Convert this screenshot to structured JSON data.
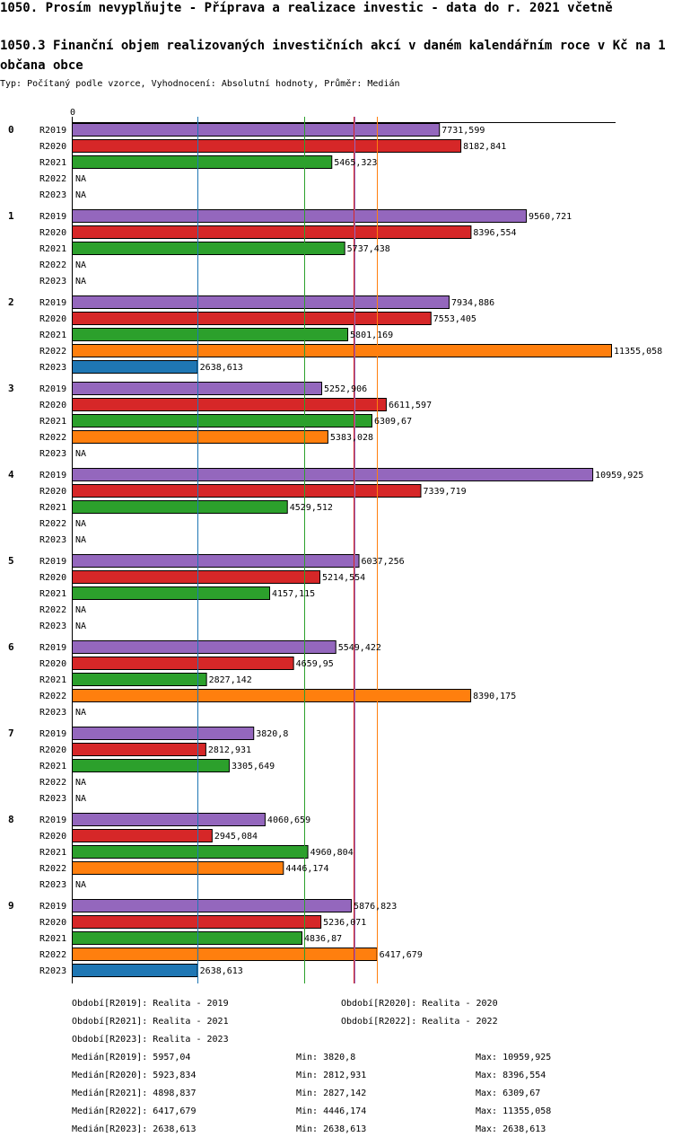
{
  "header": {
    "title": "1050. Prosím nevyplňujte - Příprava a realizace investic - data do r. 2021 včetně",
    "subtitle": "1050.3 Finanční objem realizovaných investičních akcí v daném kalendářním roce v Kč na 1 občana obce",
    "type_line": "Typ: Počítaný podle vzorce, Vyhodnocení: Absolutní hodnoty, Průměr: Medián"
  },
  "chart_data": {
    "type": "bar",
    "orientation": "horizontal",
    "title": "1050.3 Finanční objem realizovaných investičních akcí v daném kalendářním roce v Kč na 1 občana obce",
    "xlabel": "",
    "ylabel": "",
    "x_tick_labels": [
      "0"
    ],
    "xlim": [
      0,
      11355.058
    ],
    "grid": false,
    "categories": [
      "0",
      "1",
      "2",
      "3",
      "4",
      "5",
      "6",
      "7",
      "8",
      "9"
    ],
    "series_names": [
      "R2019",
      "R2020",
      "R2021",
      "R2022",
      "R2023"
    ],
    "series": [
      {
        "name": "R2019",
        "color": "#9467bd",
        "values": [
          7731.599,
          9560.721,
          7934.886,
          5252.906,
          10959.925,
          6037.256,
          5549.422,
          3820.8,
          4060.659,
          5876.823
        ],
        "labels": [
          "7731,599",
          "9560,721",
          "7934,886",
          "5252,906",
          "10959,925",
          "6037,256",
          "5549,422",
          "3820,8",
          "4060,659",
          "5876,823"
        ]
      },
      {
        "name": "R2020",
        "color": "#d62728",
        "values": [
          8182.841,
          8396.554,
          7553.405,
          6611.597,
          7339.719,
          5214.554,
          4659.95,
          2812.931,
          2945.084,
          5236.071
        ],
        "labels": [
          "8182,841",
          "8396,554",
          "7553,405",
          "6611,597",
          "7339,719",
          "5214,554",
          "4659,95",
          "2812,931",
          "2945,084",
          "5236,071"
        ]
      },
      {
        "name": "R2021",
        "color": "#2ca02c",
        "values": [
          5465.323,
          5737.438,
          5801.169,
          6309.67,
          4529.512,
          4157.115,
          2827.142,
          3305.649,
          4960.804,
          4836.87
        ],
        "labels": [
          "5465,323",
          "5737,438",
          "5801,169",
          "6309,67",
          "4529,512",
          "4157,115",
          "2827,142",
          "3305,649",
          "4960,804",
          "4836,87"
        ]
      },
      {
        "name": "R2022",
        "color": "#ff7f0e",
        "values": [
          null,
          null,
          11355.058,
          5383.028,
          null,
          null,
          8390.175,
          null,
          4446.174,
          6417.679
        ],
        "labels": [
          "NA",
          "NA",
          "11355,058",
          "5383,028",
          "NA",
          "NA",
          "8390,175",
          "NA",
          "4446,174",
          "6417,679"
        ]
      },
      {
        "name": "R2023",
        "color": "#1f77b4",
        "values": [
          null,
          null,
          2638.613,
          null,
          null,
          null,
          null,
          null,
          null,
          2638.613
        ],
        "labels": [
          "NA",
          "NA",
          "2638,613",
          "NA",
          "NA",
          "NA",
          "NA",
          "NA",
          "NA",
          "2638,613"
        ]
      }
    ],
    "reference_lines": [
      {
        "name": "Medián R2019",
        "value": 5957.04,
        "color": "#9467bd"
      },
      {
        "name": "Medián R2020",
        "value": 5923.834,
        "color": "#d62728"
      },
      {
        "name": "Medián R2021",
        "value": 4898.837,
        "color": "#2ca02c"
      },
      {
        "name": "Medián R2022",
        "value": 6417.679,
        "color": "#ff7f0e"
      },
      {
        "name": "Medián R2023",
        "value": 2638.613,
        "color": "#1f77b4"
      }
    ]
  },
  "legend": {
    "periods": [
      "Období[R2019]: Realita - 2019",
      "Období[R2020]: Realita - 2020",
      "Období[R2021]: Realita - 2021",
      "Období[R2022]: Realita - 2022",
      "Období[R2023]: Realita - 2023"
    ],
    "stats": [
      {
        "median": "Medián[R2019]: 5957,04",
        "min": "Min: 3820,8",
        "max": "Max: 10959,925"
      },
      {
        "median": "Medián[R2020]: 5923,834",
        "min": "Min: 2812,931",
        "max": "Max: 8396,554"
      },
      {
        "median": "Medián[R2021]: 4898,837",
        "min": "Min: 2827,142",
        "max": "Max: 6309,67"
      },
      {
        "median": "Medián[R2022]: 6417,679",
        "min": "Min: 4446,174",
        "max": "Max: 11355,058"
      },
      {
        "median": "Medián[R2023]: 2638,613",
        "min": "Min: 2638,613",
        "max": "Max: 2638,613"
      }
    ]
  }
}
